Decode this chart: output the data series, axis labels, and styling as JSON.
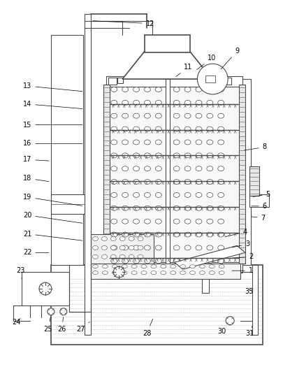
{
  "bg_color": "#ffffff",
  "lc": "#4a4a4a",
  "lw": 0.8,
  "lw2": 1.2,
  "label_fs": 7,
  "fig_w": 4.06,
  "fig_h": 5.35,
  "dpi": 100
}
